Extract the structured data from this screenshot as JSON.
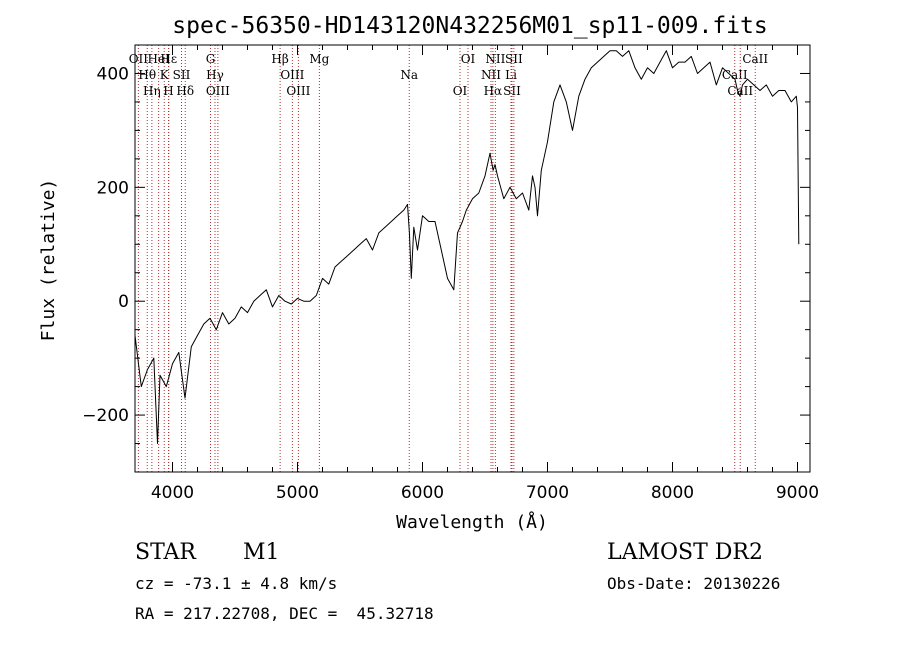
{
  "header": {
    "title": "spec-56350-HD143120N432256M01_sp11-009.fits"
  },
  "info": {
    "object_class": "STAR",
    "subclass": "M1",
    "cz": "cz = -73.1 ± 4.8 km/s",
    "coords": "RA = 217.22708, DEC =  45.32718",
    "survey": "LAMOST DR2",
    "obs_date": "Obs-Date: 20130226"
  },
  "chart_data": {
    "type": "line",
    "title": "spec-56350-HD143120N432256M01_sp11-009.fits",
    "xlabel": "Wavelength (Å)",
    "ylabel": "Flux (relative)",
    "xlim": [
      3700,
      9100
    ],
    "ylim": [
      -300,
      450
    ],
    "xticks": [
      4000,
      5000,
      6000,
      7000,
      8000,
      9000
    ],
    "yticks": [
      -200,
      0,
      200,
      400
    ],
    "grid": false,
    "series": [
      {
        "x": [
          3700,
          3750,
          3800,
          3850,
          3880,
          3900,
          3950,
          4000,
          4050,
          4100,
          4150,
          4200,
          4250,
          4300,
          4350,
          4400,
          4450,
          4500,
          4550,
          4600,
          4650,
          4700,
          4750,
          4800,
          4850,
          4900,
          4950,
          5000,
          5050,
          5100,
          5150,
          5200,
          5250,
          5300,
          5350,
          5400,
          5450,
          5500,
          5550,
          5600,
          5650,
          5700,
          5750,
          5800,
          5850,
          5880,
          5895,
          5910,
          5930,
          5960,
          6000,
          6050,
          6100,
          6150,
          6200,
          6250,
          6280,
          6320,
          6350,
          6400,
          6450,
          6500,
          6540,
          6565,
          6580,
          6600,
          6650,
          6700,
          6750,
          6800,
          6850,
          6880,
          6900,
          6920,
          6950,
          7000,
          7050,
          7100,
          7150,
          7200,
          7250,
          7300,
          7350,
          7400,
          7450,
          7500,
          7550,
          7600,
          7650,
          7700,
          7750,
          7800,
          7850,
          7900,
          7950,
          8000,
          8050,
          8100,
          8150,
          8200,
          8250,
          8300,
          8350,
          8400,
          8450,
          8500,
          8520,
          8540,
          8560,
          8600,
          8650,
          8700,
          8750,
          8800,
          8850,
          8900,
          8950,
          8990,
          9000,
          9010
        ],
        "values": [
          -60,
          -150,
          -120,
          -100,
          -250,
          -130,
          -150,
          -110,
          -90,
          -170,
          -80,
          -60,
          -40,
          -30,
          -50,
          -20,
          -40,
          -30,
          -10,
          -20,
          0,
          10,
          20,
          -10,
          10,
          0,
          -5,
          5,
          0,
          0,
          10,
          40,
          30,
          60,
          70,
          80,
          90,
          100,
          110,
          90,
          120,
          130,
          140,
          150,
          160,
          170,
          120,
          40,
          130,
          90,
          150,
          140,
          140,
          90,
          40,
          20,
          120,
          140,
          160,
          180,
          190,
          220,
          260,
          230,
          240,
          220,
          180,
          200,
          180,
          190,
          160,
          220,
          200,
          150,
          230,
          280,
          350,
          380,
          350,
          300,
          360,
          390,
          410,
          420,
          430,
          440,
          440,
          430,
          440,
          410,
          390,
          410,
          400,
          420,
          440,
          410,
          420,
          420,
          430,
          400,
          410,
          420,
          380,
          410,
          400,
          390,
          370,
          360,
          380,
          390,
          380,
          370,
          380,
          360,
          370,
          370,
          350,
          360,
          340,
          100
        ],
        "color": "#000000"
      }
    ],
    "markers": [
      {
        "label": "OII",
        "wl": 3727
      },
      {
        "label": "Hθ",
        "wl": 3798
      },
      {
        "label": "Hη",
        "wl": 3835
      },
      {
        "label": "HeI",
        "wl": 3889
      },
      {
        "label": "K",
        "wl": 3934
      },
      {
        "label": "H",
        "wl": 3968
      },
      {
        "label": "Hε",
        "wl": 3970
      },
      {
        "label": "SII",
        "wl": 4072
      },
      {
        "label": "Hδ",
        "wl": 4102
      },
      {
        "label": "G",
        "wl": 4304
      },
      {
        "label": "Hγ",
        "wl": 4340
      },
      {
        "label": "OIII",
        "wl": 4363
      },
      {
        "label": "Hβ",
        "wl": 4861
      },
      {
        "label": "OIII",
        "wl": 4959
      },
      {
        "label": "OIII",
        "wl": 5007
      },
      {
        "label": "Mg",
        "wl": 5175
      },
      {
        "label": "Na",
        "wl": 5894
      },
      {
        "label": "OI",
        "wl": 6300
      },
      {
        "label": "OI",
        "wl": 6364
      },
      {
        "label": "NII",
        "wl": 6548
      },
      {
        "label": "Hα",
        "wl": 6563
      },
      {
        "label": "NII",
        "wl": 6583
      },
      {
        "label": "Li",
        "wl": 6708
      },
      {
        "label": "SII",
        "wl": 6716
      },
      {
        "label": "SII",
        "wl": 6731
      },
      {
        "label": "CaII",
        "wl": 8498
      },
      {
        "label": "CaII",
        "wl": 8542
      },
      {
        "label": "CaII",
        "wl": 8662
      }
    ],
    "marker_color": "#b03030"
  }
}
